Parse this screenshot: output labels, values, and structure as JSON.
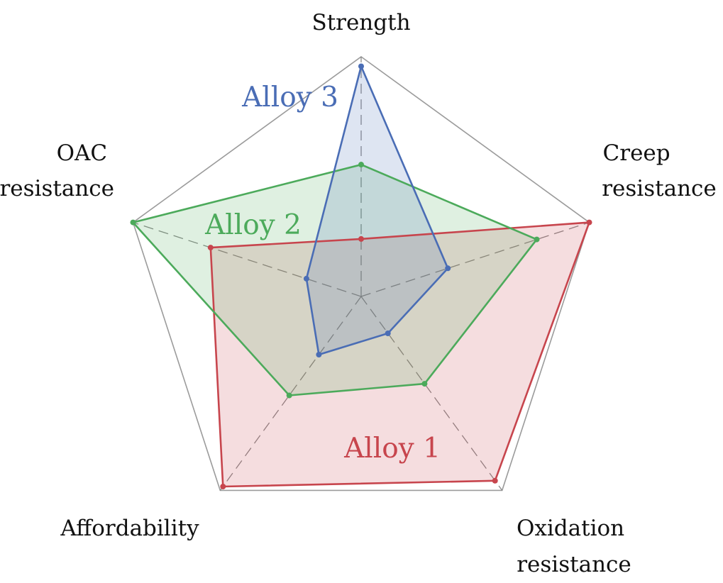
{
  "chart_data": {
    "type": "radar",
    "axes": [
      [
        "Strength"
      ],
      [
        "Creep",
        "resistance"
      ],
      [
        "Oxidation",
        "resistance"
      ],
      [
        "Affordability"
      ],
      [
        "OAC",
        "resistance"
      ]
    ],
    "range": [
      0,
      1
    ],
    "grid": "outer pentagon with dashed spokes",
    "series": [
      {
        "name": "Alloy 1",
        "color": "#c7454d",
        "values": [
          0.24,
          1.0,
          0.95,
          0.98,
          0.66
        ]
      },
      {
        "name": "Alloy 2",
        "color": "#4caa5b",
        "values": [
          0.55,
          0.77,
          0.45,
          0.51,
          1.0
        ]
      },
      {
        "name": "Alloy 3",
        "color": "#4a6db5",
        "values": [
          0.96,
          0.38,
          0.19,
          0.3,
          0.24
        ]
      }
    ]
  },
  "colors": {
    "grid_outline": "#9b9b9b",
    "spoke": "#8a8a8a"
  }
}
